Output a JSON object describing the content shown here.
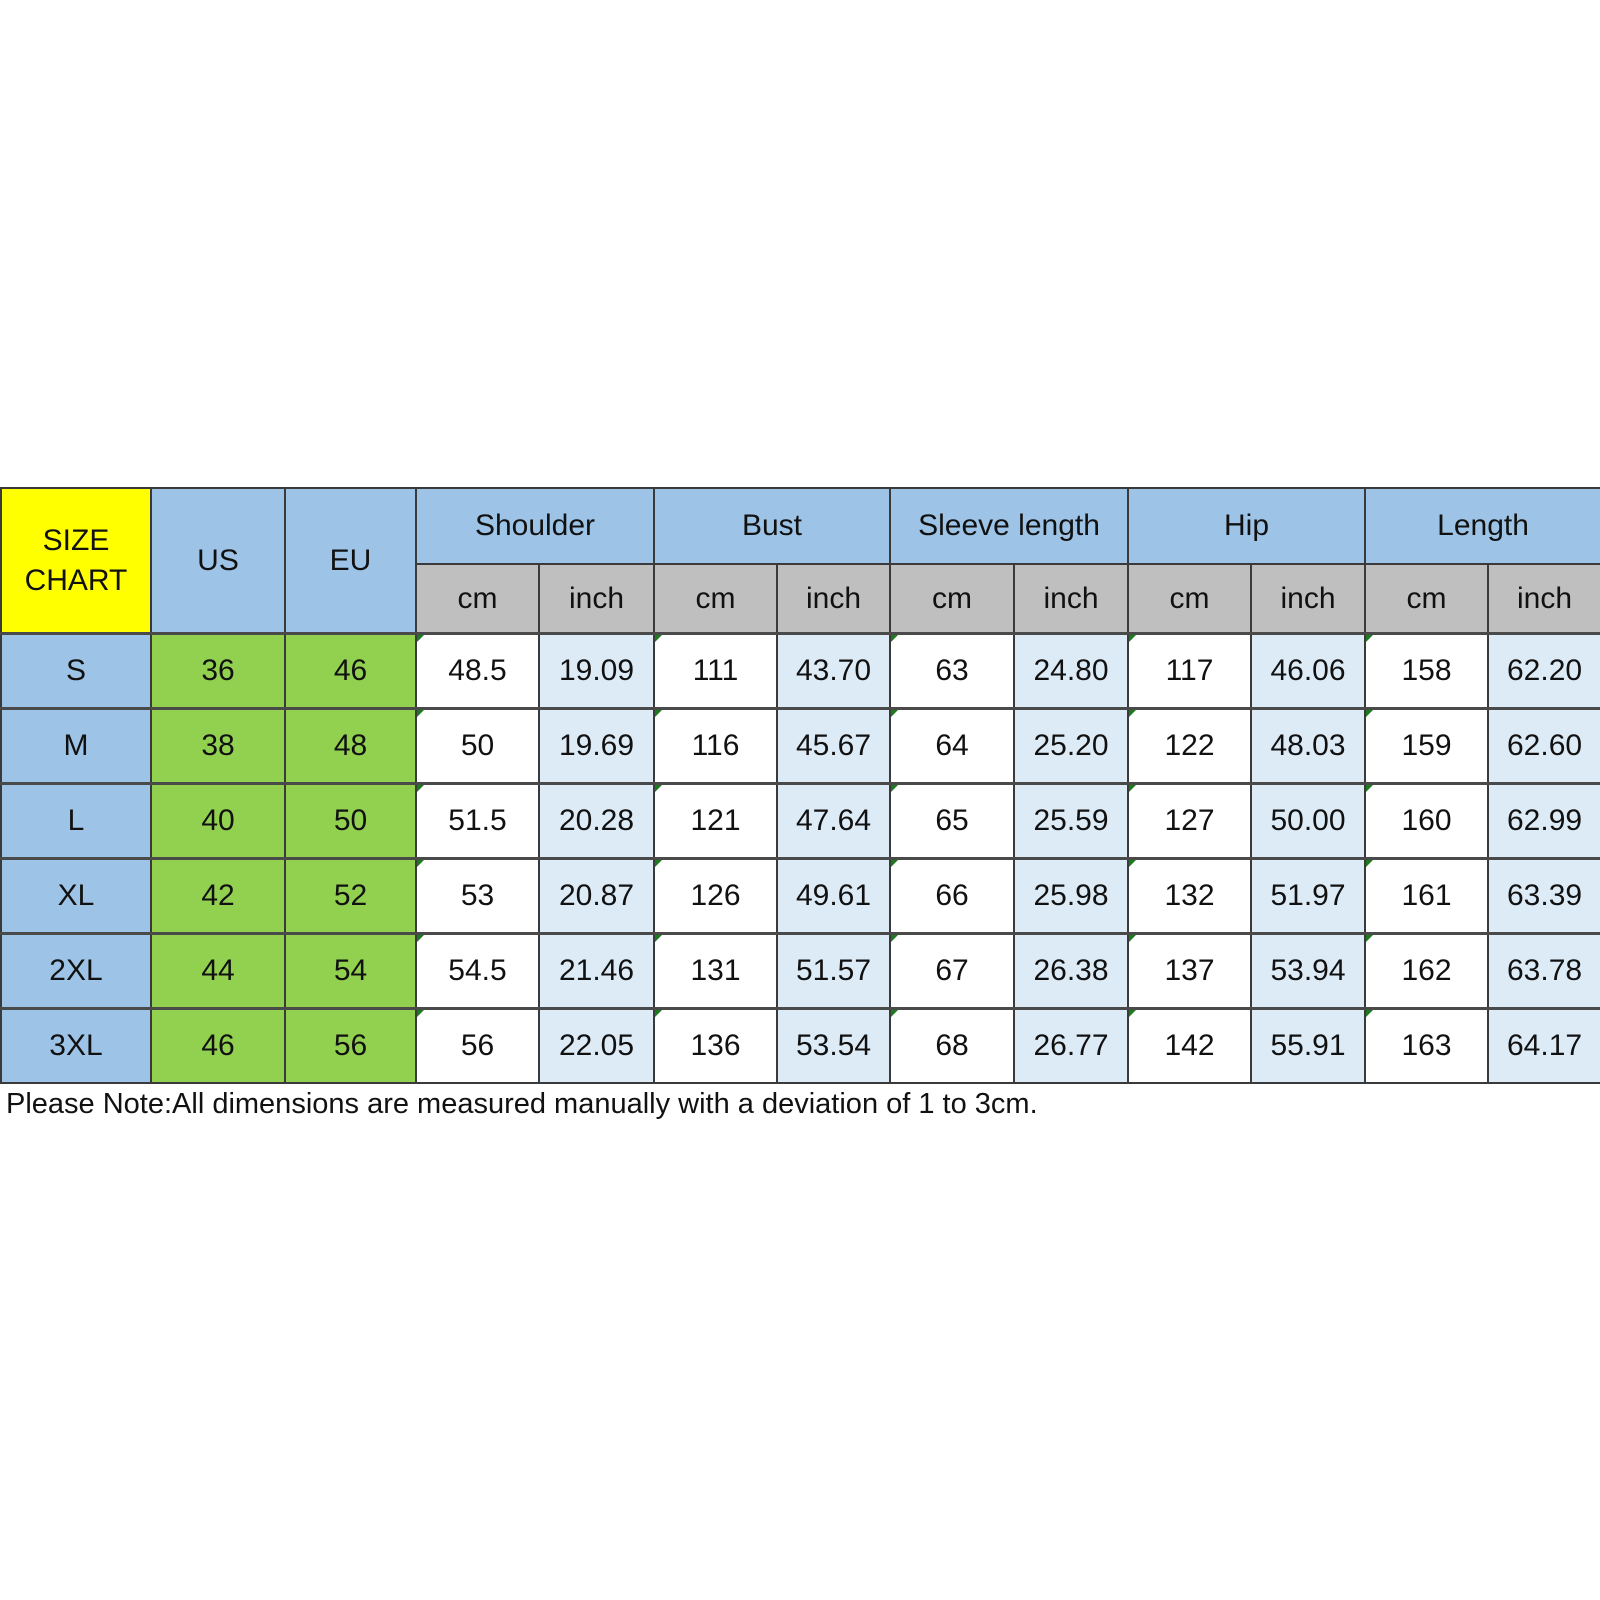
{
  "table": {
    "corner_label": [
      "SIZE",
      "CHART"
    ],
    "us_label": "US",
    "eu_label": "EU",
    "groups": [
      "Shoulder",
      "Bust",
      "Sleeve length",
      "Hip",
      "Length"
    ],
    "units": [
      "cm",
      "inch"
    ],
    "rows": [
      {
        "size": "S",
        "us": "36",
        "eu": "46",
        "values": [
          "48.5",
          "19.09",
          "111",
          "43.70",
          "63",
          "24.80",
          "117",
          "46.06",
          "158",
          "62.20"
        ]
      },
      {
        "size": "M",
        "us": "38",
        "eu": "48",
        "values": [
          "50",
          "19.69",
          "116",
          "45.67",
          "64",
          "25.20",
          "122",
          "48.03",
          "159",
          "62.60"
        ]
      },
      {
        "size": "L",
        "us": "40",
        "eu": "50",
        "values": [
          "51.5",
          "20.28",
          "121",
          "47.64",
          "65",
          "25.59",
          "127",
          "50.00",
          "160",
          "62.99"
        ]
      },
      {
        "size": "XL",
        "us": "42",
        "eu": "52",
        "values": [
          "53",
          "20.87",
          "126",
          "49.61",
          "66",
          "25.98",
          "132",
          "51.97",
          "161",
          "63.39"
        ]
      },
      {
        "size": "2XL",
        "us": "44",
        "eu": "54",
        "values": [
          "54.5",
          "21.46",
          "131",
          "51.57",
          "67",
          "26.38",
          "137",
          "53.94",
          "162",
          "63.78"
        ]
      },
      {
        "size": "3XL",
        "us": "46",
        "eu": "56",
        "values": [
          "56",
          "22.05",
          "136",
          "53.54",
          "68",
          "26.77",
          "142",
          "55.91",
          "163",
          "64.17"
        ]
      }
    ]
  },
  "note": "Please Note:All dimensions are measured manually with a deviation of 1 to 3cm.",
  "colors": {
    "corner": "#ffff00",
    "header": "#9dc3e6",
    "unit_header": "#bfbfbf",
    "us_eu_cells": "#92d050",
    "inch_cells": "#ddebf7"
  }
}
